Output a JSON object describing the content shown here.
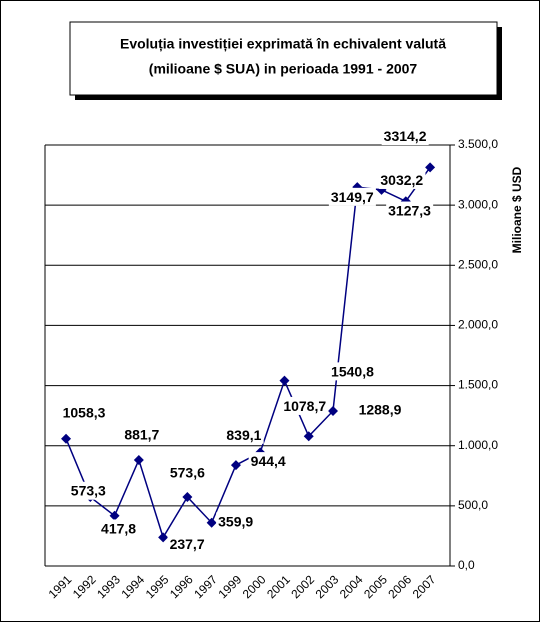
{
  "chart_data": {
    "type": "line",
    "title": [
      "Evoluția investiției exprimată în echivalent valută",
      "(milioane $ SUA) in perioada 1991 - 2007"
    ],
    "y_label": "Milioane $ USD",
    "categories": [
      "1991",
      "1992",
      "1993",
      "1994",
      "1995",
      "1996",
      "1997",
      "1999",
      "2000",
      "2001",
      "2002",
      "2003",
      "2004",
      "2005",
      "2006",
      "2007"
    ],
    "series": [
      {
        "color": "#000080",
        "values": [
          1058.3,
          573.3,
          417.8,
          881.7,
          237.7,
          573.6,
          359.9,
          839.1,
          944.4,
          1540.8,
          1078.7,
          1288.9,
          3149.7,
          3127.3,
          3032.2,
          3314.2
        ],
        "value_labels": [
          "1058,3",
          "573,3",
          "417,8",
          "881,7",
          "237,7",
          "573,6",
          "359,9",
          "839,1",
          "944,4",
          "1540,8",
          "1078,7",
          "1288,9",
          "3149,7",
          "3127,3",
          "3032,2",
          "3314,2"
        ]
      }
    ],
    "ylim": [
      0,
      3500
    ],
    "yticks": [
      {
        "value": 0,
        "label": "0,0"
      },
      {
        "value": 500,
        "label": "500,0"
      },
      {
        "value": 1000,
        "label": "1.000,0"
      },
      {
        "value": 1500,
        "label": "1.500,0"
      },
      {
        "value": 2000,
        "label": "2.000,0"
      },
      {
        "value": 2500,
        "label": "2.500,0"
      },
      {
        "value": 3000,
        "label": "3.000,0"
      },
      {
        "value": 3500,
        "label": "3.500,0"
      }
    ],
    "grid": true
  }
}
